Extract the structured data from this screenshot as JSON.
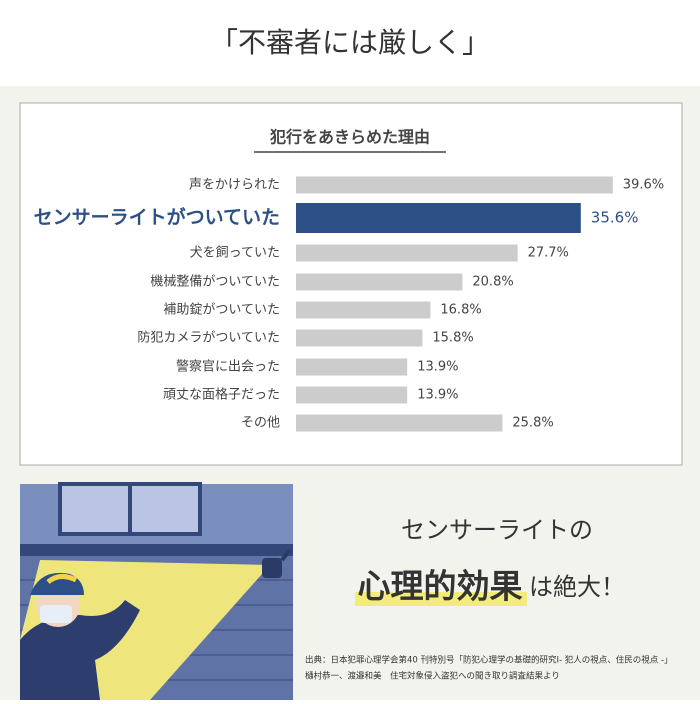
{
  "header": {
    "title": "「不審者には厳しく」"
  },
  "chart_data": {
    "type": "bar",
    "orientation": "horizontal",
    "title": "犯行をあきらめた理由",
    "categories": [
      "声をかけられた",
      "センサーライトがついていた",
      "犬を飼っていた",
      "機械整備がついていた",
      "補助錠がついていた",
      "防犯カメラがついていた",
      "警察官に出会った",
      "頑丈な面格子だった",
      "その他"
    ],
    "values": [
      39.6,
      35.6,
      27.7,
      20.8,
      16.8,
      15.8,
      13.9,
      13.9,
      25.8
    ],
    "value_labels": [
      "39.6%",
      "35.6%",
      "27.7%",
      "20.8%",
      "16.8%",
      "15.8%",
      "13.9%",
      "13.9%",
      "25.8%"
    ],
    "color": "#cccccc",
    "highlight_index": 1,
    "highlight_color": "#2c5086",
    "xlim": [
      0,
      40
    ]
  },
  "promo": {
    "line1": "センサーライトの",
    "emphasis": "心理的効果",
    "rest": "は絶大！"
  },
  "source": {
    "lines": [
      "出典：日本犯罪心理学会第40 刊特別号「防犯心理学の基礎的研究Ⅰ- 犯人の視点、住民の視点 -」",
      "樋村恭一、渡邉和美　住宅対象侵入盗犯への聞き取り調査結果より"
    ]
  }
}
